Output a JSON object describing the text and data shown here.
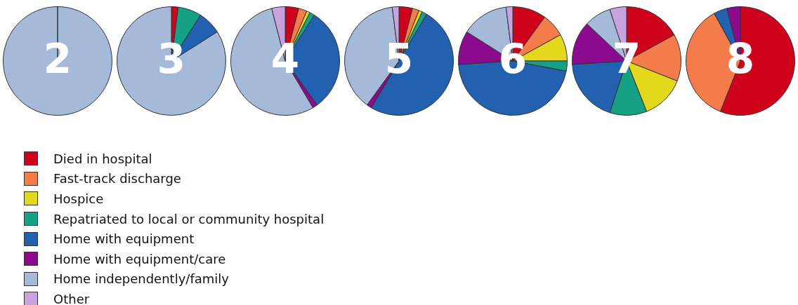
{
  "chart_data": {
    "type": "pie",
    "categories": [
      "Died in hospital",
      "Fast-track discharge",
      "Hospice",
      "Repatriated to local or community hospital",
      "Home with equipment",
      "Home with equipment/care",
      "Home independently/family",
      "Other"
    ],
    "colors": [
      "#d0021b",
      "#f47c4a",
      "#e3d81c",
      "#16a085",
      "#2260b0",
      "#8b0a8e",
      "#a4bad8",
      "#c9a3e0"
    ],
    "legend": "bottom left",
    "series": [
      {
        "name": "2",
        "values": [
          0,
          0,
          0,
          0,
          0,
          0,
          100,
          0
        ]
      },
      {
        "name": "3",
        "values": [
          2,
          0,
          0,
          7,
          7,
          0,
          84,
          0
        ]
      },
      {
        "name": "4",
        "values": [
          4,
          2.5,
          1,
          1.5,
          31,
          1.5,
          54.5,
          4
        ]
      },
      {
        "name": "5",
        "values": [
          4,
          2,
          1,
          1.5,
          50,
          1.5,
          38,
          2
        ]
      },
      {
        "name": "6",
        "values": [
          10,
          7,
          8,
          3,
          46,
          10,
          14,
          2
        ]
      },
      {
        "name": "7",
        "values": [
          17,
          14,
          13,
          11,
          19,
          13,
          8,
          5
        ]
      },
      {
        "name": "8",
        "values": [
          56,
          36,
          0,
          0,
          4,
          4,
          0,
          0
        ]
      }
    ]
  }
}
